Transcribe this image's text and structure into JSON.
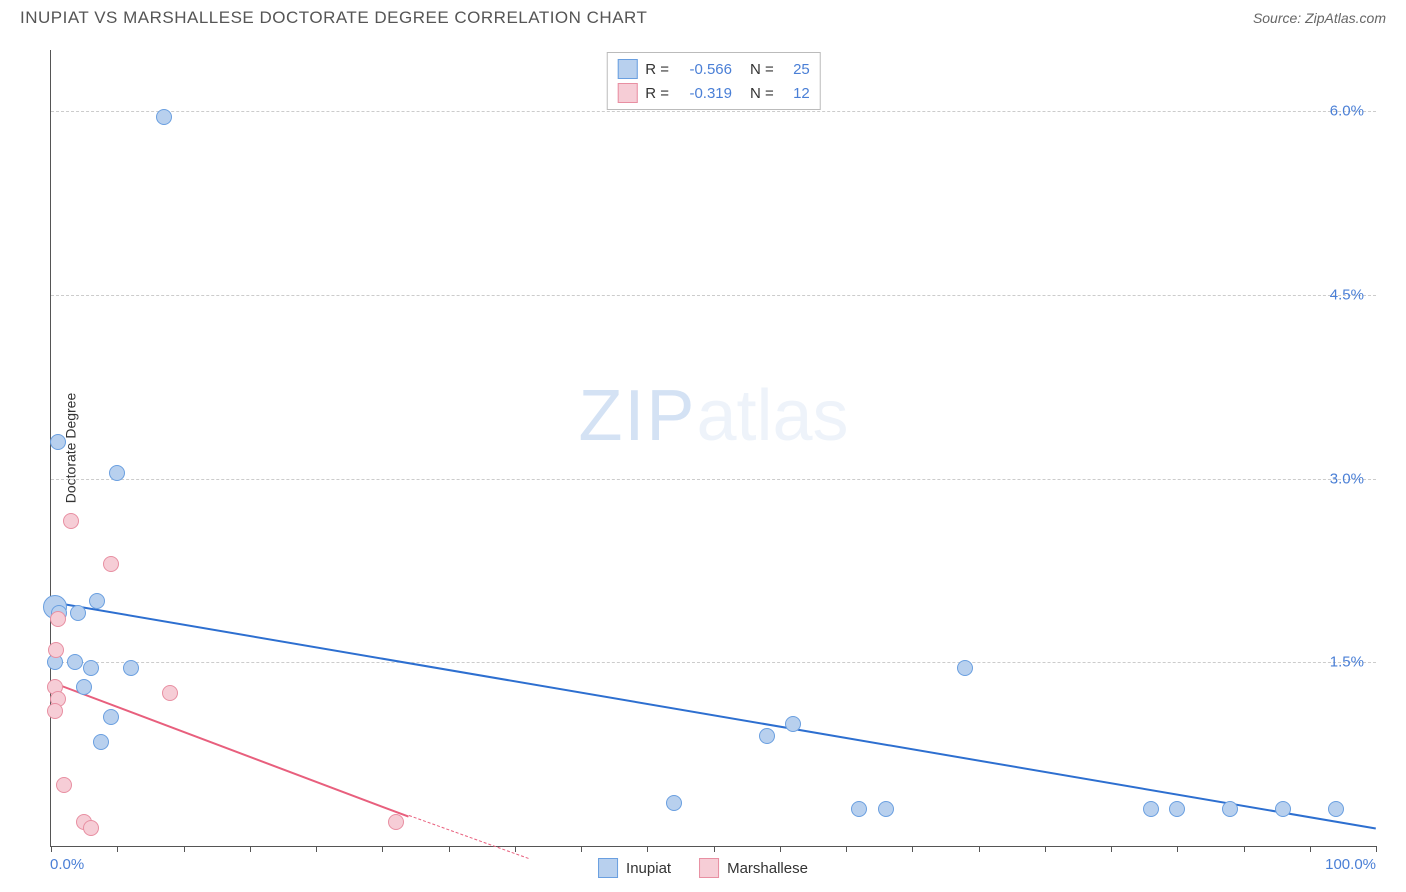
{
  "title": "INUPIAT VS MARSHALLESE DOCTORATE DEGREE CORRELATION CHART",
  "source_label": "Source: ZipAtlas.com",
  "watermark": {
    "zip": "ZIP",
    "atlas": "atlas"
  },
  "chart": {
    "type": "scatter",
    "background_color": "#ffffff",
    "grid_color": "#cccccc",
    "axis_color": "#555555",
    "xlim": [
      0,
      100
    ],
    "ylim": [
      0,
      6.5
    ],
    "x_axis_label_min": "0.0%",
    "x_axis_label_max": "100.0%",
    "y_axis_label": "Doctorate Degree",
    "y_ticks": [
      {
        "value": 1.5,
        "label": "1.5%"
      },
      {
        "value": 3.0,
        "label": "3.0%"
      },
      {
        "value": 4.5,
        "label": "4.5%"
      },
      {
        "value": 6.0,
        "label": "6.0%"
      }
    ],
    "x_tick_positions": [
      0,
      5,
      10,
      15,
      20,
      25,
      30,
      35,
      40,
      45,
      50,
      55,
      60,
      65,
      70,
      75,
      80,
      85,
      90,
      95,
      100
    ],
    "marker_radius": 8,
    "marker_stroke_width": 1.5,
    "series": [
      {
        "name": "Inupiat",
        "fill_color": "#b8d0ee",
        "stroke_color": "#6a9fe0",
        "line_color": "#2d6fd0",
        "R": "-0.566",
        "N": "25",
        "trend": {
          "x1": 0,
          "y1": 2.0,
          "x2": 100,
          "y2": 0.15
        },
        "points": [
          {
            "x": 8.5,
            "y": 5.95,
            "r": 8
          },
          {
            "x": 0.5,
            "y": 3.3,
            "r": 8
          },
          {
            "x": 5.0,
            "y": 3.05,
            "r": 8
          },
          {
            "x": 3.5,
            "y": 2.0,
            "r": 8
          },
          {
            "x": 0.3,
            "y": 1.95,
            "r": 12
          },
          {
            "x": 0.6,
            "y": 1.9,
            "r": 8
          },
          {
            "x": 2.0,
            "y": 1.9,
            "r": 8
          },
          {
            "x": 0.3,
            "y": 1.5,
            "r": 8
          },
          {
            "x": 1.8,
            "y": 1.5,
            "r": 8
          },
          {
            "x": 3.0,
            "y": 1.45,
            "r": 8
          },
          {
            "x": 6.0,
            "y": 1.45,
            "r": 8
          },
          {
            "x": 2.5,
            "y": 1.3,
            "r": 8
          },
          {
            "x": 4.5,
            "y": 1.05,
            "r": 8
          },
          {
            "x": 3.8,
            "y": 0.85,
            "r": 8
          },
          {
            "x": 47.0,
            "y": 0.35,
            "r": 8
          },
          {
            "x": 54.0,
            "y": 0.9,
            "r": 8
          },
          {
            "x": 56.0,
            "y": 1.0,
            "r": 8
          },
          {
            "x": 61.0,
            "y": 0.3,
            "r": 8
          },
          {
            "x": 63.0,
            "y": 0.3,
            "r": 8
          },
          {
            "x": 69.0,
            "y": 1.45,
            "r": 8
          },
          {
            "x": 83.0,
            "y": 0.3,
            "r": 8
          },
          {
            "x": 85.0,
            "y": 0.3,
            "r": 8
          },
          {
            "x": 89.0,
            "y": 0.3,
            "r": 8
          },
          {
            "x": 93.0,
            "y": 0.3,
            "r": 8
          },
          {
            "x": 97.0,
            "y": 0.3,
            "r": 8
          }
        ]
      },
      {
        "name": "Marshallese",
        "fill_color": "#f6cdd6",
        "stroke_color": "#e88fa2",
        "line_color": "#e85f7d",
        "R": "-0.319",
        "N": "12",
        "trend": {
          "x1": 0,
          "y1": 1.35,
          "x2": 27,
          "y2": 0.25
        },
        "trend_dash": {
          "x1": 27,
          "y1": 0.25,
          "x2": 36,
          "y2": -0.1
        },
        "points": [
          {
            "x": 1.5,
            "y": 2.65,
            "r": 8
          },
          {
            "x": 4.5,
            "y": 2.3,
            "r": 8
          },
          {
            "x": 0.5,
            "y": 1.85,
            "r": 8
          },
          {
            "x": 0.4,
            "y": 1.6,
            "r": 8
          },
          {
            "x": 0.3,
            "y": 1.3,
            "r": 8
          },
          {
            "x": 0.5,
            "y": 1.2,
            "r": 8
          },
          {
            "x": 9.0,
            "y": 1.25,
            "r": 8
          },
          {
            "x": 0.3,
            "y": 1.1,
            "r": 8
          },
          {
            "x": 1.0,
            "y": 0.5,
            "r": 8
          },
          {
            "x": 2.5,
            "y": 0.2,
            "r": 8
          },
          {
            "x": 3.0,
            "y": 0.15,
            "r": 8
          },
          {
            "x": 26.0,
            "y": 0.2,
            "r": 8
          }
        ]
      }
    ]
  },
  "legend_top": {
    "r_label": "R",
    "n_label": "N",
    "eq": "="
  },
  "legend_bottom_labels": [
    "Inupiat",
    "Marshallese"
  ]
}
